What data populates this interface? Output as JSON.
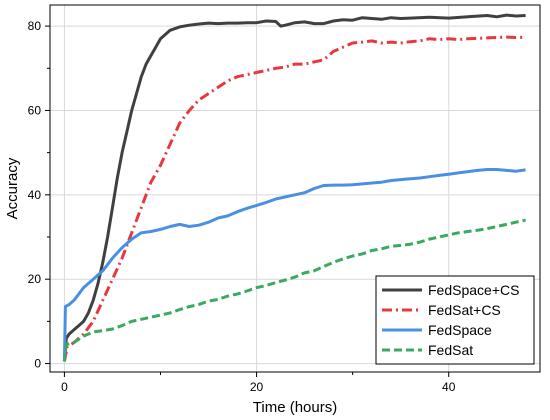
{
  "chart_data": {
    "type": "line",
    "xlabel": "Time (hours)",
    "ylabel": "Accuracy",
    "xlim": [
      -1.5,
      49.5
    ],
    "ylim": [
      -2,
      85
    ],
    "xticks": [
      0,
      20,
      40
    ],
    "yticks": [
      0,
      20,
      40,
      60,
      80
    ],
    "grid": true,
    "legend_position": "bottom-right",
    "series": [
      {
        "name": "FedSpace+CS",
        "color": "#404040",
        "dash": "solid",
        "points": [
          [
            0,
            0.5
          ],
          [
            0.2,
            6
          ],
          [
            0.5,
            7
          ],
          [
            1,
            8
          ],
          [
            1.5,
            9
          ],
          [
            2,
            10
          ],
          [
            2.5,
            12
          ],
          [
            3,
            15
          ],
          [
            3.5,
            19
          ],
          [
            4,
            24
          ],
          [
            4.5,
            30
          ],
          [
            5,
            37
          ],
          [
            5.5,
            44
          ],
          [
            6,
            50
          ],
          [
            6.5,
            55
          ],
          [
            7,
            60
          ],
          [
            7.5,
            64
          ],
          [
            8,
            68
          ],
          [
            8.5,
            71
          ],
          [
            9,
            73
          ],
          [
            9.5,
            75
          ],
          [
            10,
            77
          ],
          [
            11,
            79
          ],
          [
            12,
            79.8
          ],
          [
            13,
            80.2
          ],
          [
            14,
            80.5
          ],
          [
            15,
            80.7
          ],
          [
            16,
            80.6
          ],
          [
            17,
            80.7
          ],
          [
            18,
            80.7
          ],
          [
            19,
            80.8
          ],
          [
            20,
            80.8
          ],
          [
            21,
            81.2
          ],
          [
            22,
            81.1
          ],
          [
            22.5,
            80
          ],
          [
            23,
            80.2
          ],
          [
            24,
            80.8
          ],
          [
            25,
            81.0
          ],
          [
            26,
            80.6
          ],
          [
            27,
            80.6
          ],
          [
            28,
            81.2
          ],
          [
            29,
            81.5
          ],
          [
            30,
            81.4
          ],
          [
            31,
            82.0
          ],
          [
            32,
            81.8
          ],
          [
            33,
            81.6
          ],
          [
            34,
            82
          ],
          [
            35,
            81.8
          ],
          [
            36,
            81.9
          ],
          [
            38,
            82.1
          ],
          [
            40,
            81.9
          ],
          [
            42,
            82.2
          ],
          [
            44,
            82.5
          ],
          [
            45,
            82.2
          ],
          [
            46,
            82.6
          ],
          [
            47,
            82.4
          ],
          [
            48,
            82.5
          ]
        ]
      },
      {
        "name": "FedSat+CS",
        "color": "#e8383d",
        "dash": "10,4,2,4",
        "points": [
          [
            0,
            0.5
          ],
          [
            0.3,
            4
          ],
          [
            1,
            5
          ],
          [
            2,
            7
          ],
          [
            3,
            10
          ],
          [
            4,
            15
          ],
          [
            5,
            20
          ],
          [
            6,
            25
          ],
          [
            7,
            31
          ],
          [
            8,
            37
          ],
          [
            9,
            43
          ],
          [
            10,
            47
          ],
          [
            11,
            52
          ],
          [
            12,
            57
          ],
          [
            13,
            60
          ],
          [
            14,
            62.5
          ],
          [
            15,
            64
          ],
          [
            16,
            65.5
          ],
          [
            17,
            67
          ],
          [
            18,
            68
          ],
          [
            19,
            68.5
          ],
          [
            20,
            69
          ],
          [
            21,
            69.5
          ],
          [
            22,
            70
          ],
          [
            23,
            70.3
          ],
          [
            24,
            71
          ],
          [
            25,
            71
          ],
          [
            26,
            71.5
          ],
          [
            27,
            72
          ],
          [
            28,
            74
          ],
          [
            29,
            75
          ],
          [
            30,
            76
          ],
          [
            31,
            76.2
          ],
          [
            32,
            76.5
          ],
          [
            33,
            76
          ],
          [
            34,
            76.2
          ],
          [
            35,
            76
          ],
          [
            36,
            76.3
          ],
          [
            37,
            76.5
          ],
          [
            38,
            77
          ],
          [
            39,
            76.8
          ],
          [
            40,
            77
          ],
          [
            41,
            76.8
          ],
          [
            42,
            77
          ],
          [
            43,
            77.1
          ],
          [
            44,
            77.2
          ],
          [
            45,
            77.3
          ],
          [
            46,
            77.4
          ],
          [
            47,
            77.3
          ],
          [
            48,
            77.4
          ]
        ]
      },
      {
        "name": "FedSpace",
        "color": "#4a90e2",
        "dash": "solid",
        "points": [
          [
            0,
            0.5
          ],
          [
            0.1,
            13.5
          ],
          [
            0.5,
            14
          ],
          [
            1,
            15
          ],
          [
            2,
            18
          ],
          [
            3,
            20
          ],
          [
            4,
            22
          ],
          [
            5,
            25
          ],
          [
            6,
            27.5
          ],
          [
            7,
            29.5
          ],
          [
            8,
            31
          ],
          [
            9,
            31.3
          ],
          [
            10,
            31.8
          ],
          [
            11,
            32.5
          ],
          [
            12,
            33
          ],
          [
            13,
            32.5
          ],
          [
            14,
            32.8
          ],
          [
            15,
            33.5
          ],
          [
            16,
            34.5
          ],
          [
            17,
            35
          ],
          [
            18,
            36
          ],
          [
            19,
            36.8
          ],
          [
            20,
            37.5
          ],
          [
            21,
            38.2
          ],
          [
            22,
            39
          ],
          [
            23,
            39.5
          ],
          [
            24,
            40
          ],
          [
            25,
            40.5
          ],
          [
            26,
            41.5
          ],
          [
            27,
            42.2
          ],
          [
            28,
            42.3
          ],
          [
            29,
            42.3
          ],
          [
            30,
            42.4
          ],
          [
            31,
            42.6
          ],
          [
            32,
            42.8
          ],
          [
            33,
            43
          ],
          [
            34,
            43.4
          ],
          [
            35,
            43.6
          ],
          [
            36,
            43.8
          ],
          [
            37,
            44
          ],
          [
            38,
            44.3
          ],
          [
            39,
            44.6
          ],
          [
            40,
            44.9
          ],
          [
            41,
            45.2
          ],
          [
            42,
            45.5
          ],
          [
            43,
            45.8
          ],
          [
            44,
            46
          ],
          [
            45,
            46
          ],
          [
            46,
            45.8
          ],
          [
            47,
            45.6
          ],
          [
            48,
            45.9
          ]
        ]
      },
      {
        "name": "FedSat",
        "color": "#3aaa60",
        "dash": "8,4",
        "points": [
          [
            0,
            0.5
          ],
          [
            0.2,
            4.5
          ],
          [
            1,
            5
          ],
          [
            2,
            6.5
          ],
          [
            3,
            7.5
          ],
          [
            4,
            7.8
          ],
          [
            5,
            8.2
          ],
          [
            6,
            9
          ],
          [
            7,
            10
          ],
          [
            8,
            10.5
          ],
          [
            9,
            11
          ],
          [
            10,
            11.5
          ],
          [
            11,
            12
          ],
          [
            12,
            12.8
          ],
          [
            13,
            13.5
          ],
          [
            14,
            14
          ],
          [
            15,
            14.8
          ],
          [
            16,
            15.2
          ],
          [
            17,
            16
          ],
          [
            18,
            16.5
          ],
          [
            19,
            17.2
          ],
          [
            20,
            18
          ],
          [
            21,
            18.5
          ],
          [
            22,
            19.2
          ],
          [
            23,
            19.8
          ],
          [
            24,
            20.5
          ],
          [
            25,
            21.5
          ],
          [
            26,
            22
          ],
          [
            27,
            23
          ],
          [
            28,
            24
          ],
          [
            29,
            24.8
          ],
          [
            30,
            25.5
          ],
          [
            31,
            26
          ],
          [
            32,
            26.8
          ],
          [
            33,
            27.2
          ],
          [
            34,
            27.8
          ],
          [
            35,
            28
          ],
          [
            36,
            28.3
          ],
          [
            37,
            28.8
          ],
          [
            38,
            29.5
          ],
          [
            39,
            30
          ],
          [
            40,
            30.5
          ],
          [
            41,
            31
          ],
          [
            42,
            31.3
          ],
          [
            43,
            31.6
          ],
          [
            44,
            32
          ],
          [
            45,
            32.5
          ],
          [
            46,
            33
          ],
          [
            47,
            33.5
          ],
          [
            48,
            34
          ]
        ]
      }
    ]
  }
}
